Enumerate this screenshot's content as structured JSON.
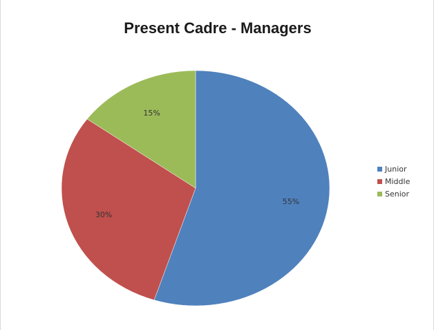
{
  "chart_data": {
    "type": "pie",
    "title": "Present Cadre - Managers",
    "categories": [
      "Junior",
      "Middle",
      "Senior"
    ],
    "values": [
      55,
      30,
      15
    ],
    "data_labels": [
      "55%",
      "30%",
      "15%"
    ],
    "colors": [
      "#4f81bd",
      "#c0504d",
      "#9bbb59"
    ],
    "legend_position": "right"
  }
}
